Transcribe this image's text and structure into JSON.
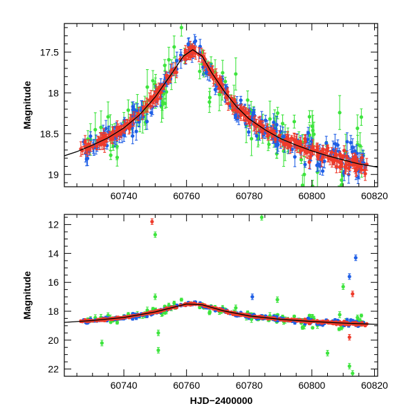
{
  "colors": {
    "blue": "#1f5fe6",
    "green": "#3ee43e",
    "red": "#ee3b2b",
    "model": "#000000",
    "frame": "#000000"
  },
  "chart_data": [
    {
      "type": "scatter",
      "panel": "top",
      "xlabel": "",
      "ylabel": "Magnitude",
      "xlim": [
        60721,
        60821
      ],
      "ylim": [
        19.15,
        17.15
      ],
      "y_inverted": true,
      "xticks": [
        60740,
        60760,
        60780,
        60800,
        60820
      ],
      "xtick_labels": [
        "60740",
        "60760",
        "60780",
        "60800",
        "60820"
      ],
      "yticks": [
        17.5,
        18,
        18.5,
        19
      ],
      "ytick_labels": [
        "17.5",
        "18",
        "18.5",
        "19"
      ],
      "model_curve": [
        [
          60721,
          18.77
        ],
        [
          60725,
          18.72
        ],
        [
          60730,
          18.64
        ],
        [
          60735,
          18.55
        ],
        [
          60740,
          18.43
        ],
        [
          60745,
          18.27
        ],
        [
          60750,
          18.05
        ],
        [
          60755,
          17.78
        ],
        [
          60759,
          17.55
        ],
        [
          60762,
          17.47
        ],
        [
          60765,
          17.55
        ],
        [
          60768,
          17.75
        ],
        [
          60772,
          17.98
        ],
        [
          60776,
          18.17
        ],
        [
          60780,
          18.32
        ],
        [
          60785,
          18.45
        ],
        [
          60790,
          18.56
        ],
        [
          60795,
          18.64
        ],
        [
          60800,
          18.71
        ],
        [
          60805,
          18.77
        ],
        [
          60810,
          18.82
        ],
        [
          60815,
          18.87
        ],
        [
          60821,
          18.91
        ]
      ]
    },
    {
      "type": "scatter",
      "panel": "bottom",
      "xlabel": "HJD−2400000",
      "ylabel": "Magnitude",
      "xlim": [
        60721,
        60821
      ],
      "ylim": [
        22.5,
        11.3
      ],
      "y_inverted": true,
      "xticks": [
        60740,
        60760,
        60780,
        60800,
        60820
      ],
      "xtick_labels": [
        "60740",
        "60760",
        "60780",
        "60800",
        "60820"
      ],
      "yticks": [
        12,
        14,
        16,
        18,
        20,
        22
      ],
      "ytick_labels": [
        "12",
        "14",
        "16",
        "18",
        "20",
        "22"
      ],
      "model_curve": [
        [
          60721,
          18.77
        ],
        [
          60730,
          18.64
        ],
        [
          60740,
          18.43
        ],
        [
          60750,
          18.05
        ],
        [
          60760,
          17.5
        ],
        [
          60765,
          17.55
        ],
        [
          60772,
          17.98
        ],
        [
          60780,
          18.32
        ],
        [
          60790,
          18.56
        ],
        [
          60800,
          18.71
        ],
        [
          60810,
          18.82
        ],
        [
          60821,
          18.91
        ]
      ],
      "outliers": [
        {
          "band": "red",
          "x": 60749,
          "y": 11.8
        },
        {
          "band": "green",
          "x": 60750,
          "y": 12.7
        },
        {
          "band": "green",
          "x": 60784,
          "y": 11.5
        },
        {
          "band": "blue",
          "x": 60814,
          "y": 14.3
        },
        {
          "band": "blue",
          "x": 60812,
          "y": 15.6
        },
        {
          "band": "green",
          "x": 60810,
          "y": 16.3
        },
        {
          "band": "red",
          "x": 60813,
          "y": 16.8
        },
        {
          "band": "green",
          "x": 60751,
          "y": 19.5
        },
        {
          "band": "green",
          "x": 60751,
          "y": 20.7
        },
        {
          "band": "green",
          "x": 60733,
          "y": 20.2
        },
        {
          "band": "green",
          "x": 60805,
          "y": 20.9
        },
        {
          "band": "green",
          "x": 60812,
          "y": 21.8
        },
        {
          "band": "green",
          "x": 60813,
          "y": 22.3
        },
        {
          "band": "blue",
          "x": 60781,
          "y": 17.0
        },
        {
          "band": "green",
          "x": 60789,
          "y": 17.2
        },
        {
          "band": "green",
          "x": 60750,
          "y": 17.0
        },
        {
          "band": "red",
          "x": 60812,
          "y": 19.8
        }
      ]
    }
  ]
}
